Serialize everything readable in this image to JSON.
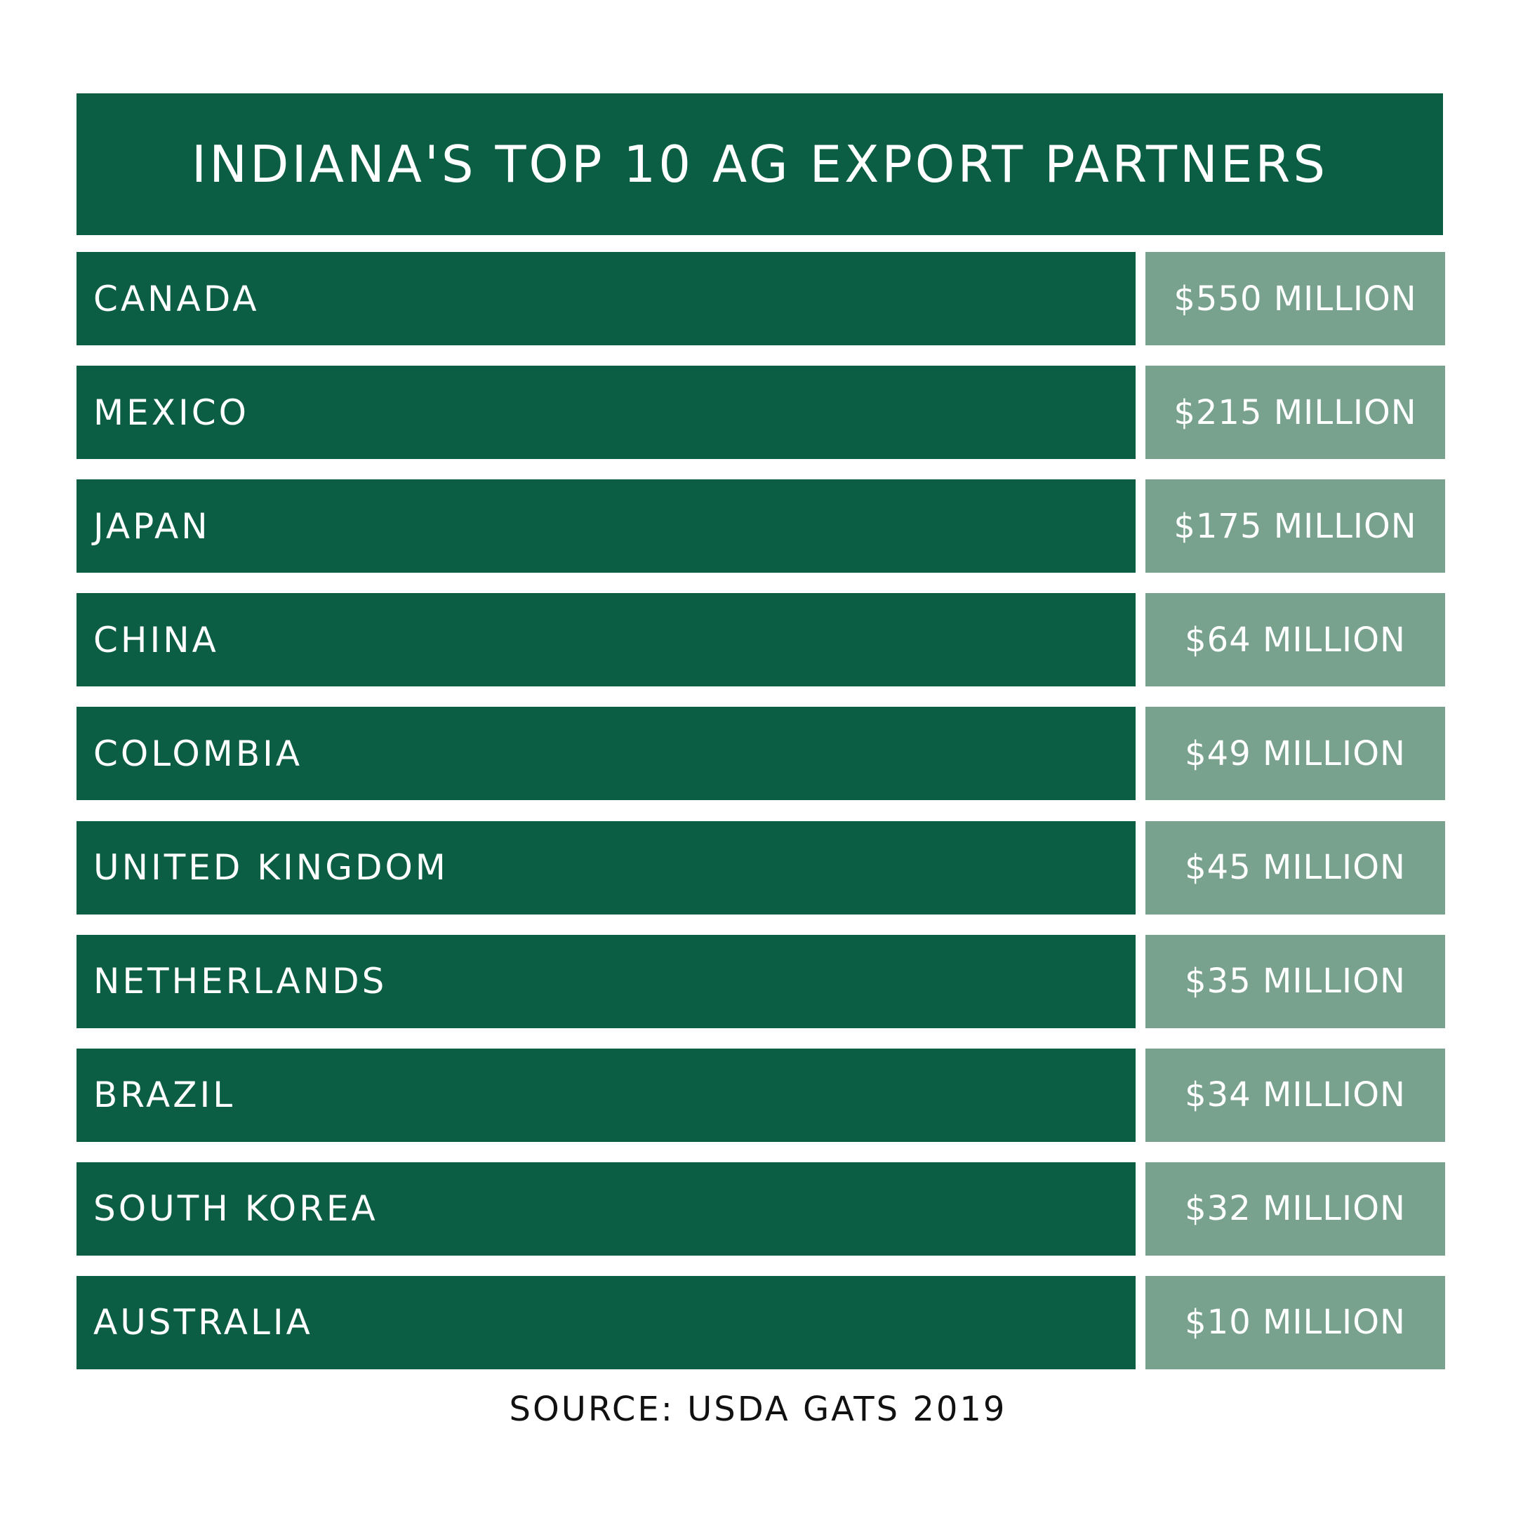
{
  "header": {
    "title": "INDIANA'S TOP 10 AG EXPORT PARTNERS"
  },
  "table": {
    "rows": [
      [
        "CANADA",
        "$550 MILLION"
      ],
      [
        "MEXICO",
        "$215 MILLION"
      ],
      [
        "JAPAN",
        "$175 MILLION"
      ],
      [
        "CHINA",
        "$64 MILLION"
      ],
      [
        "COLOMBIA",
        "$49 MILLION"
      ],
      [
        "UNITED KINGDOM",
        "$45 MILLION"
      ],
      [
        "NETHERLANDS",
        "$35 MILLION"
      ],
      [
        "BRAZIL",
        "$34 MILLION"
      ],
      [
        "SOUTH KOREA",
        "$32 MILLION"
      ],
      [
        "AUSTRALIA",
        "$10 MILLION"
      ]
    ]
  },
  "source": "SOURCE: USDA GATS 2019"
}
